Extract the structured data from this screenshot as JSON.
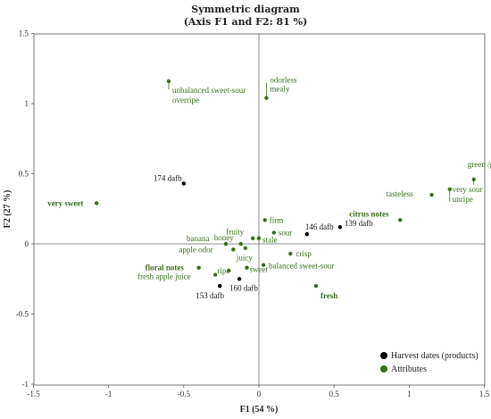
{
  "chart_data": {
    "type": "scatter",
    "title": "Symmetric diagram",
    "subtitle": "(Axis F1 and F2: 81 %)",
    "xlabel": "F1 (54 %)",
    "ylabel": "F2 (27 %)",
    "xlim": [
      -1.5,
      1.5
    ],
    "ylim": [
      -1,
      1.5
    ],
    "x_ticks": [
      -1.5,
      -1,
      -0.5,
      0,
      0.5,
      1,
      1.5
    ],
    "y_ticks": [
      -1,
      -0.5,
      0,
      0.5,
      1,
      1.5
    ],
    "x_tick_labels": [
      "-1.5",
      "-1",
      "-0.5",
      "0",
      "0.5",
      "1",
      "1.5"
    ],
    "y_tick_labels": [
      "-1",
      "-0.5",
      "0",
      "0.5",
      "1",
      "1.5"
    ],
    "grid": false,
    "legend_position": "bottom-right",
    "series": [
      {
        "name": "Harvest dates (products)",
        "color": "#000000",
        "points": [
          {
            "label": "174 dafb",
            "x": -0.5,
            "y": 0.43
          },
          {
            "label": "146 dafb",
            "x": 0.32,
            "y": 0.07
          },
          {
            "label": "139 dafb",
            "x": 0.54,
            "y": 0.12
          },
          {
            "label": "160 dafb",
            "x": -0.13,
            "y": -0.25
          },
          {
            "label": "153 dafb",
            "x": -0.26,
            "y": -0.3
          }
        ]
      },
      {
        "name": "Attributes",
        "color": "#3a6e1e",
        "points": [
          {
            "label": "unbalanced sweet-sour",
            "x": -0.6,
            "y": 1.16
          },
          {
            "label": "overripe",
            "x": -0.6,
            "y": 1.16
          },
          {
            "label": "odorless",
            "x": 0.05,
            "y": 1.04
          },
          {
            "label": "mealy",
            "x": 0.05,
            "y": 1.04
          },
          {
            "label": "very sweet",
            "x": -1.08,
            "y": 0.29
          },
          {
            "label": "green /gr…",
            "x": 1.43,
            "y": 0.46
          },
          {
            "label": "tasteless",
            "x": 1.15,
            "y": 0.35
          },
          {
            "label": "very sour",
            "x": 1.27,
            "y": 0.39
          },
          {
            "label": "unripe",
            "x": 1.27,
            "y": 0.39
          },
          {
            "label": "citrus notes",
            "x": 0.94,
            "y": 0.17
          },
          {
            "label": "firm",
            "x": 0.04,
            "y": 0.17
          },
          {
            "label": "fruity",
            "x": -0.04,
            "y": 0.04
          },
          {
            "label": "sour",
            "x": 0.1,
            "y": 0.08
          },
          {
            "label": "stale",
            "x": 0.0,
            "y": 0.04
          },
          {
            "label": "honey",
            "x": -0.12,
            "y": 0.0
          },
          {
            "label": "banana",
            "x": -0.22,
            "y": 0.0
          },
          {
            "label": "juicy",
            "x": -0.09,
            "y": -0.03
          },
          {
            "label": "apple odor",
            "x": -0.17,
            "y": -0.04
          },
          {
            "label": "crisp",
            "x": 0.21,
            "y": -0.07
          },
          {
            "label": "balanced sweet-sour",
            "x": 0.03,
            "y": -0.15
          },
          {
            "label": "floral notes",
            "x": -0.4,
            "y": -0.17
          },
          {
            "label": "sweet",
            "x": -0.08,
            "y": -0.17
          },
          {
            "label": "ripe",
            "x": -0.2,
            "y": -0.19
          },
          {
            "label": "fresh apple juice",
            "x": -0.29,
            "y": -0.22
          },
          {
            "label": "fresh",
            "x": 0.38,
            "y": -0.3
          }
        ]
      }
    ]
  }
}
